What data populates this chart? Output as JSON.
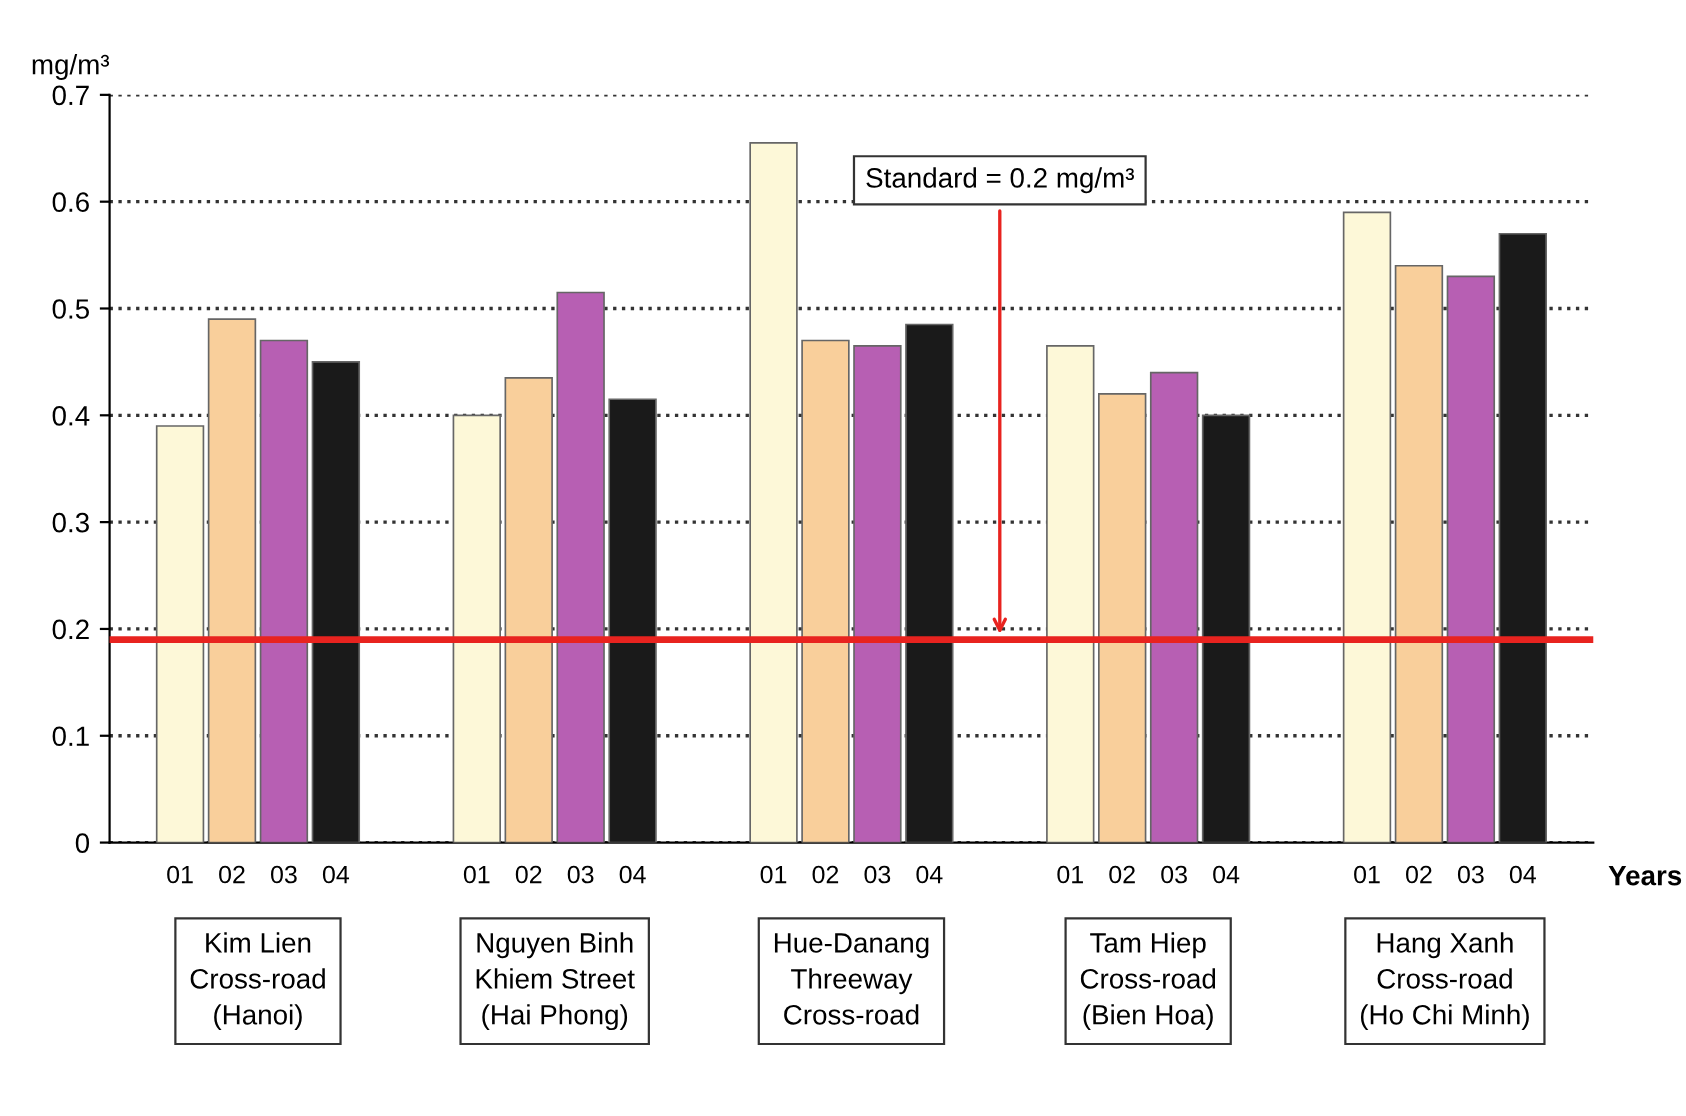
{
  "chart_data": {
    "type": "bar",
    "ylabel": "mg/m³",
    "xlabel": "Years",
    "categories": [
      "Kim Lien\nCross-road\n(Hanoi)",
      "Nguyen Binh\nKhiem Street\n(Hai Phong)",
      "Hue-Danang\nThreeway\nCross-road",
      "Tam Hiep\nCross-road\n(Bien Hoa)",
      "Hang Xanh\nCross-road\n(Ho Chi Minh)"
    ],
    "series": [
      {
        "name": "01",
        "color": "#fdf8d8",
        "values": [
          0.39,
          0.4,
          0.655,
          0.465,
          0.59
        ]
      },
      {
        "name": "02",
        "color": "#f9cf9b",
        "values": [
          0.49,
          0.435,
          0.47,
          0.42,
          0.54
        ]
      },
      {
        "name": "03",
        "color": "#b75fb3",
        "values": [
          0.47,
          0.515,
          0.465,
          0.44,
          0.53
        ]
      },
      {
        "name": "04",
        "color": "#1a1a1a",
        "values": [
          0.45,
          0.415,
          0.485,
          0.4,
          0.57
        ]
      }
    ],
    "ylim": [
      0,
      0.7
    ],
    "yticks": [
      0,
      0.1,
      0.2,
      0.3,
      0.4,
      0.5,
      0.6,
      0.7
    ],
    "grid": "y",
    "legend": false,
    "ref_lines": [
      {
        "axis": "y",
        "value": 0.19,
        "label": "Standard = 0.2 mg/m³",
        "color": "#e8231f",
        "line_style": "solid"
      }
    ]
  }
}
